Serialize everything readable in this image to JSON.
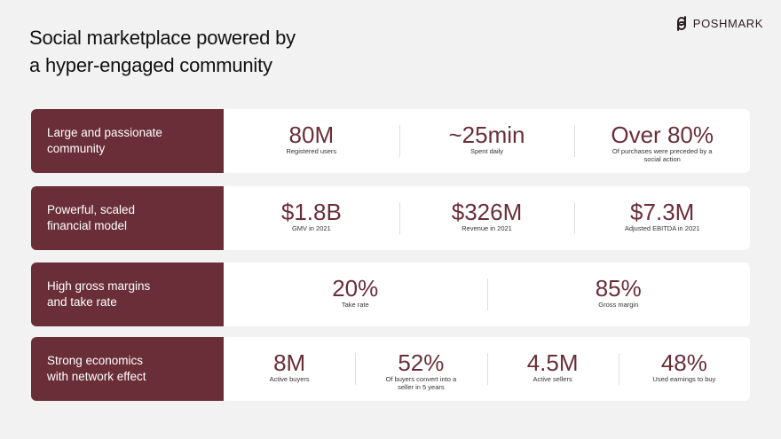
{
  "title_lines": [
    "Social marketplace powered by",
    "a hyper-engaged community"
  ],
  "brand": {
    "name": "POSHMARK",
    "logo_icon": "poshmark-logo-icon"
  },
  "colors": {
    "accent": "#6a2e38",
    "background": "#f2f2f2",
    "card": "#ffffff"
  },
  "rows": [
    {
      "label": [
        "Large and passionate",
        "community"
      ],
      "stats": [
        {
          "value": "80M",
          "caption": "Registered users"
        },
        {
          "value": "~25min",
          "caption": "Spent daily"
        },
        {
          "value": "Over 80%",
          "caption": "Of purchases were preceded by a social action"
        }
      ]
    },
    {
      "label": [
        "Powerful, scaled",
        "financial model"
      ],
      "stats": [
        {
          "value": "$1.8B",
          "caption": "GMV in 2021"
        },
        {
          "value": "$326M",
          "caption": "Revenue in 2021"
        },
        {
          "value": "$7.3M",
          "caption": "Adjusted EBITDA in 2021"
        }
      ]
    },
    {
      "label": [
        "High gross margins",
        "and take rate"
      ],
      "stats": [
        {
          "value": "20%",
          "caption": "Take rate"
        },
        {
          "value": "85%",
          "caption": "Gross margin"
        }
      ]
    },
    {
      "label": [
        "Strong economics",
        "with network effect"
      ],
      "stats": [
        {
          "value": "8M",
          "caption": "Active buyers"
        },
        {
          "value": "52%",
          "caption": "Of buyers convert into a seller in 5 years"
        },
        {
          "value": "4.5M",
          "caption": "Active sellers"
        },
        {
          "value": "48%",
          "caption": "Used earnings to buy"
        }
      ]
    }
  ]
}
